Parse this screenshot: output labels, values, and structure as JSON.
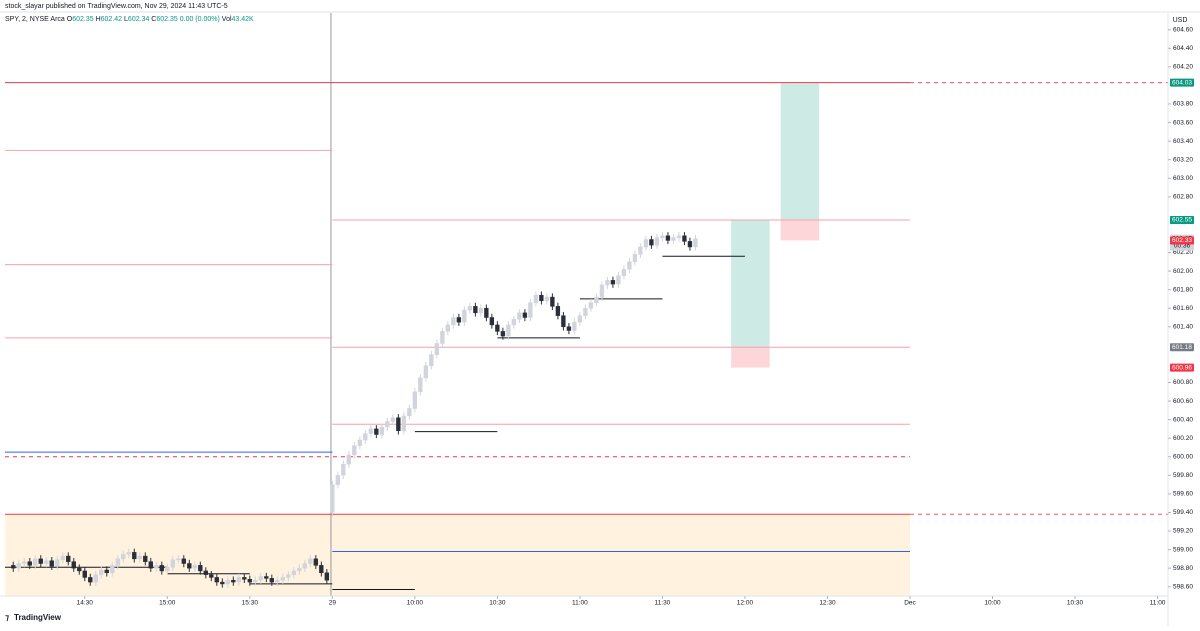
{
  "header": "stock_slayar published on TradingView.com, Nov 29, 2024 11:43 UTC-5",
  "legend": {
    "symbol": "SPY, 2, NYSE Arca",
    "items": [
      {
        "k": "O",
        "v": "602.35"
      },
      {
        "k": "H",
        "v": "602.42"
      },
      {
        "k": "L",
        "v": "602.34"
      },
      {
        "k": "C",
        "v": "602.35"
      }
    ],
    "change": "0.00 (0.00%)",
    "volume": {
      "k": "Vol",
      "v": "43.42K"
    }
  },
  "currency": "USD",
  "brand": "TradingView",
  "chart_data": {
    "type": "candlestick",
    "up_color": "#d1d4dc",
    "down_color": "#2a2e39",
    "x": [
      -13,
      -12,
      -11,
      -10,
      -9,
      -8,
      -7,
      -6,
      -5,
      -4,
      -3,
      -2,
      -1,
      0,
      1,
      2,
      3,
      4,
      5,
      6,
      7,
      8,
      9,
      10,
      11,
      12,
      13,
      14,
      15,
      16,
      17,
      18,
      19,
      20,
      21,
      22,
      23,
      24,
      25,
      26,
      27,
      28,
      29,
      30,
      31,
      32,
      33,
      34,
      35,
      36,
      37,
      38,
      39,
      40,
      41,
      42,
      43,
      44,
      45,
      46,
      47,
      48,
      49,
      50,
      51,
      52,
      53,
      54,
      55,
      56,
      57,
      58,
      59,
      60,
      61,
      62,
      63,
      64,
      65,
      66,
      67,
      68,
      69,
      70,
      71,
      72,
      73,
      74,
      75,
      76,
      77,
      78,
      79,
      80,
      81,
      82,
      83,
      84,
      85,
      86,
      87,
      88,
      89,
      90,
      91,
      92,
      93,
      94,
      95,
      96,
      97,
      98,
      99,
      100,
      101,
      102,
      103,
      104,
      105,
      106,
      107,
      108,
      109,
      110,
      111
    ],
    "ohlc": [
      [
        598.83,
        598.87,
        598.76,
        598.8
      ],
      [
        598.8,
        598.89,
        598.76,
        598.85
      ],
      [
        598.85,
        598.91,
        598.81,
        598.87
      ],
      [
        598.87,
        598.91,
        598.79,
        598.83
      ],
      [
        598.83,
        598.94,
        598.79,
        598.9
      ],
      [
        598.9,
        598.94,
        598.81,
        598.85
      ],
      [
        598.85,
        598.92,
        598.81,
        598.88
      ],
      [
        598.88,
        598.92,
        598.78,
        598.82
      ],
      [
        598.82,
        598.93,
        598.78,
        598.89
      ],
      [
        598.89,
        598.97,
        598.85,
        598.93
      ],
      [
        598.93,
        598.97,
        598.83,
        598.87
      ],
      [
        598.87,
        598.91,
        598.76,
        598.8
      ],
      [
        598.8,
        598.84,
        598.73,
        598.77
      ],
      [
        598.77,
        598.81,
        598.66,
        598.7
      ],
      [
        598.7,
        598.74,
        598.61,
        598.65
      ],
      [
        598.65,
        598.77,
        598.61,
        598.73
      ],
      [
        598.73,
        598.82,
        598.69,
        598.78
      ],
      [
        598.78,
        598.82,
        598.71,
        598.75
      ],
      [
        598.75,
        598.87,
        598.71,
        598.83
      ],
      [
        598.83,
        598.94,
        598.79,
        598.9
      ],
      [
        598.9,
        598.99,
        598.86,
        598.95
      ],
      [
        598.95,
        599.01,
        598.91,
        598.97
      ],
      [
        598.97,
        599.01,
        598.86,
        598.9
      ],
      [
        598.9,
        598.97,
        598.86,
        598.93
      ],
      [
        598.93,
        598.97,
        598.83,
        598.87
      ],
      [
        598.87,
        598.91,
        598.76,
        598.8
      ],
      [
        598.8,
        598.87,
        598.76,
        598.83
      ],
      [
        598.83,
        598.87,
        598.73,
        598.77
      ],
      [
        598.77,
        598.85,
        598.73,
        598.81
      ],
      [
        598.81,
        598.93,
        598.77,
        598.89
      ],
      [
        598.89,
        598.94,
        598.85,
        598.9
      ],
      [
        598.9,
        598.94,
        598.81,
        598.85
      ],
      [
        598.85,
        598.89,
        598.76,
        598.8
      ],
      [
        598.8,
        598.87,
        598.76,
        598.83
      ],
      [
        598.83,
        598.87,
        598.73,
        598.77
      ],
      [
        598.77,
        598.81,
        598.69,
        598.73
      ],
      [
        598.73,
        598.77,
        598.66,
        598.7
      ],
      [
        598.7,
        598.74,
        598.61,
        598.65
      ],
      [
        598.65,
        598.69,
        598.59,
        598.63
      ],
      [
        598.63,
        598.71,
        598.59,
        598.67
      ],
      [
        598.67,
        598.71,
        598.61,
        598.65
      ],
      [
        598.65,
        598.74,
        598.61,
        598.7
      ],
      [
        598.7,
        598.74,
        598.64,
        598.68
      ],
      [
        598.68,
        598.72,
        598.61,
        598.65
      ],
      [
        598.65,
        598.71,
        598.61,
        598.67
      ],
      [
        598.67,
        598.75,
        598.63,
        598.71
      ],
      [
        598.71,
        598.75,
        598.65,
        598.69
      ],
      [
        598.69,
        598.73,
        598.61,
        598.65
      ],
      [
        598.65,
        598.71,
        598.61,
        598.67
      ],
      [
        598.67,
        598.74,
        598.63,
        598.7
      ],
      [
        598.7,
        598.77,
        598.66,
        598.73
      ],
      [
        598.73,
        598.81,
        598.69,
        598.77
      ],
      [
        598.77,
        598.84,
        598.73,
        598.8
      ],
      [
        598.8,
        598.89,
        598.76,
        598.85
      ],
      [
        598.85,
        598.94,
        598.81,
        598.9
      ],
      [
        598.9,
        598.94,
        598.79,
        598.83
      ],
      [
        598.83,
        598.87,
        598.71,
        598.75
      ],
      [
        598.75,
        598.79,
        598.63,
        598.67
      ],
      [
        599.4,
        599.74,
        599.36,
        599.7
      ],
      [
        599.7,
        599.84,
        599.66,
        599.8
      ],
      [
        599.8,
        599.96,
        599.76,
        599.92
      ],
      [
        599.92,
        600.06,
        599.88,
        600.02
      ],
      [
        600.02,
        600.16,
        599.98,
        600.12
      ],
      [
        600.12,
        600.22,
        600.08,
        600.18
      ],
      [
        600.18,
        600.29,
        600.14,
        600.25
      ],
      [
        600.25,
        600.34,
        600.21,
        600.3
      ],
      [
        600.3,
        600.34,
        600.2,
        600.24
      ],
      [
        600.24,
        600.36,
        600.2,
        600.32
      ],
      [
        600.32,
        600.42,
        600.28,
        600.38
      ],
      [
        600.38,
        600.46,
        600.34,
        600.42
      ],
      [
        600.42,
        600.46,
        600.24,
        600.28
      ],
      [
        600.28,
        600.48,
        600.24,
        600.44
      ],
      [
        600.44,
        600.56,
        600.4,
        600.52
      ],
      [
        600.52,
        600.74,
        600.48,
        600.7
      ],
      [
        600.7,
        600.89,
        600.66,
        600.85
      ],
      [
        600.85,
        601.02,
        600.81,
        600.98
      ],
      [
        600.98,
        601.14,
        600.94,
        601.1
      ],
      [
        601.1,
        601.26,
        601.06,
        601.22
      ],
      [
        601.22,
        601.39,
        601.18,
        601.35
      ],
      [
        601.35,
        601.46,
        601.31,
        601.42
      ],
      [
        601.42,
        601.54,
        601.38,
        601.5
      ],
      [
        601.5,
        601.54,
        601.41,
        601.45
      ],
      [
        601.45,
        601.62,
        601.41,
        601.58
      ],
      [
        601.58,
        601.66,
        601.54,
        601.62
      ],
      [
        601.62,
        601.66,
        601.51,
        601.55
      ],
      [
        601.55,
        601.64,
        601.51,
        601.6
      ],
      [
        601.6,
        601.64,
        601.46,
        601.5
      ],
      [
        601.5,
        601.54,
        601.38,
        601.42
      ],
      [
        601.42,
        601.46,
        601.31,
        601.35
      ],
      [
        601.35,
        601.39,
        601.26,
        601.3
      ],
      [
        601.3,
        601.46,
        601.26,
        601.42
      ],
      [
        601.42,
        601.52,
        601.38,
        601.48
      ],
      [
        601.48,
        601.59,
        601.44,
        601.55
      ],
      [
        601.55,
        601.59,
        601.46,
        601.5
      ],
      [
        601.5,
        601.7,
        601.46,
        601.66
      ],
      [
        601.66,
        601.78,
        601.62,
        601.74
      ],
      [
        601.74,
        601.78,
        601.64,
        601.68
      ],
      [
        601.68,
        601.76,
        601.64,
        601.72
      ],
      [
        601.72,
        601.76,
        601.58,
        601.62
      ],
      [
        601.62,
        601.66,
        601.48,
        601.52
      ],
      [
        601.52,
        601.56,
        601.36,
        601.4
      ],
      [
        601.4,
        601.44,
        601.32,
        601.36
      ],
      [
        601.36,
        601.49,
        601.32,
        601.45
      ],
      [
        601.45,
        601.56,
        601.41,
        601.52
      ],
      [
        601.52,
        601.64,
        601.48,
        601.6
      ],
      [
        601.6,
        601.7,
        601.56,
        601.66
      ],
      [
        601.66,
        601.76,
        601.62,
        601.72
      ],
      [
        601.72,
        601.89,
        601.68,
        601.85
      ],
      [
        601.85,
        601.94,
        601.81,
        601.9
      ],
      [
        601.9,
        601.94,
        601.82,
        601.86
      ],
      [
        601.86,
        601.99,
        601.82,
        601.95
      ],
      [
        601.95,
        602.06,
        601.91,
        602.02
      ],
      [
        602.02,
        602.14,
        601.98,
        602.1
      ],
      [
        602.1,
        602.22,
        602.06,
        602.18
      ],
      [
        602.18,
        602.3,
        602.14,
        602.26
      ],
      [
        602.26,
        602.38,
        602.22,
        602.34
      ],
      [
        602.34,
        602.38,
        602.24,
        602.28
      ],
      [
        602.28,
        602.4,
        602.24,
        602.36
      ],
      [
        602.36,
        602.42,
        602.32,
        602.38
      ],
      [
        602.38,
        602.42,
        602.29,
        602.33
      ],
      [
        602.33,
        602.4,
        602.29,
        602.36
      ],
      [
        602.36,
        602.42,
        602.32,
        602.38
      ],
      [
        602.38,
        602.42,
        602.28,
        602.32
      ],
      [
        602.32,
        602.36,
        602.22,
        602.26
      ],
      [
        602.26,
        602.39,
        602.22,
        602.35
      ]
    ],
    "xlim": [
      -14.5,
      196.9
    ],
    "ylim": [
      598.5,
      604.78
    ],
    "xticks": [
      {
        "value": 0,
        "label": "14:30"
      },
      {
        "value": 15,
        "label": "15:00"
      },
      {
        "value": 30,
        "label": "15:30"
      },
      {
        "value": 45,
        "label": "29"
      },
      {
        "value": 60,
        "label": "10:00"
      },
      {
        "value": 75,
        "label": "10:30"
      },
      {
        "value": 90,
        "label": "11:00"
      },
      {
        "value": 105,
        "label": "11:30"
      },
      {
        "value": 120,
        "label": "12:00"
      },
      {
        "value": 135,
        "label": "12:30"
      },
      {
        "value": 150,
        "label": "Dec"
      },
      {
        "value": 165,
        "label": "10:00"
      },
      {
        "value": 180,
        "label": "10:30"
      },
      {
        "value": 195,
        "label": "11:00"
      }
    ],
    "yticks": [
      {
        "value": 598.6,
        "label": "598.60"
      },
      {
        "value": 598.8,
        "label": "598.80"
      },
      {
        "value": 599,
        "label": "599.00"
      },
      {
        "value": 599.2,
        "label": "599.20"
      },
      {
        "value": 599.4,
        "label": "599.40"
      },
      {
        "value": 599.6,
        "label": "599.60"
      },
      {
        "value": 599.8,
        "label": "599.80"
      },
      {
        "value": 600,
        "label": "600.00"
      },
      {
        "value": 600.2,
        "label": "600.20"
      },
      {
        "value": 600.4,
        "label": "600.40"
      },
      {
        "value": 600.6,
        "label": "600.60"
      },
      {
        "value": 600.8,
        "label": "600.80"
      },
      {
        "value": 601.4,
        "label": "601.40"
      },
      {
        "value": 601.6,
        "label": "601.60"
      },
      {
        "value": 601.8,
        "label": "601.80"
      },
      {
        "value": 602,
        "label": "602.00"
      },
      {
        "value": 602.2,
        "label": "602.20"
      },
      {
        "value": 602.8,
        "label": "602.80"
      },
      {
        "value": 603,
        "label": "603.00"
      },
      {
        "value": 603.2,
        "label": "603.20"
      },
      {
        "value": 603.4,
        "label": "603.40"
      },
      {
        "value": 603.6,
        "label": "603.60"
      },
      {
        "value": 603.8,
        "label": "603.80"
      },
      {
        "value": 604.2,
        "label": "604.20"
      },
      {
        "value": 604.4,
        "label": "604.40"
      },
      {
        "value": 604.6,
        "label": "604.60"
      }
    ],
    "session_break": 44.75,
    "zone": {
      "from": -14.5,
      "to": 150,
      "top": 599.38,
      "color": "#fff3e0"
    },
    "lines": [
      {
        "price": 604.03,
        "from": -14.5,
        "to": 150,
        "color": "#f23645",
        "dash": false
      },
      {
        "price": 604.03,
        "from": 150,
        "to": 196.9,
        "color": "#f7525f",
        "dash": true
      },
      {
        "price": 603.3,
        "from": -14.5,
        "to": 45,
        "color": "#f7a1a8",
        "dash": false
      },
      {
        "price": 602.07,
        "from": -14.5,
        "to": 45,
        "color": "#f7a1a8",
        "dash": false
      },
      {
        "price": 601.28,
        "from": -14.5,
        "to": 45,
        "color": "#f7a1a8",
        "dash": false
      },
      {
        "price": 602.55,
        "from": 45,
        "to": 150,
        "color": "#f7a1a8",
        "dash": false
      },
      {
        "price": 601.18,
        "from": 45,
        "to": 150,
        "color": "#f7a1a8",
        "dash": false
      },
      {
        "price": 600.35,
        "from": 45,
        "to": 150,
        "color": "#f7a1a8",
        "dash": false
      },
      {
        "price": 600,
        "from": -14.5,
        "to": 150,
        "color": "#f23645",
        "dash": true
      },
      {
        "price": 599.38,
        "from": -14.5,
        "to": 150,
        "color": "#f23645",
        "dash": false
      },
      {
        "price": 599.38,
        "from": 150,
        "to": 196.9,
        "color": "#f7525f",
        "dash": true
      },
      {
        "price": 600.05,
        "from": -14.5,
        "to": 45,
        "color": "#2962ff",
        "dash": false
      },
      {
        "price": 598.98,
        "from": 45,
        "to": 150,
        "color": "#2962ff",
        "dash": false
      },
      {
        "price": 598.81,
        "from": -14.5,
        "to": 15,
        "color": "#131722",
        "dash": false
      },
      {
        "price": 598.74,
        "from": 15,
        "to": 30,
        "color": "#131722",
        "dash": false
      },
      {
        "price": 598.63,
        "from": 30,
        "to": 45,
        "color": "#131722",
        "dash": false
      },
      {
        "price": 598.57,
        "from": 45,
        "to": 60,
        "color": "#131722",
        "dash": false
      },
      {
        "price": 600.27,
        "from": 60,
        "to": 75,
        "color": "#131722",
        "dash": false
      },
      {
        "price": 601.28,
        "from": 75,
        "to": 90,
        "color": "#131722",
        "dash": false
      },
      {
        "price": 601.7,
        "from": 90,
        "to": 105,
        "color": "#131722",
        "dash": false
      },
      {
        "price": 602.16,
        "from": 105,
        "to": 120,
        "color": "#131722",
        "dash": false
      }
    ],
    "positions": [
      {
        "from": 117.5,
        "to": 124.5,
        "entry": 601.18,
        "target": 602.55,
        "stop": 600.96
      },
      {
        "from": 126.5,
        "to": 133.5,
        "entry": 602.55,
        "target": 604.03,
        "stop": 602.33
      }
    ],
    "target_color": "#cdebe4",
    "stop_color": "#fcd6d9",
    "badges": [
      {
        "value": 604.03,
        "label": "604.03",
        "color": "#089981"
      },
      {
        "value": 602.55,
        "label": "602.55",
        "color": "#787b86"
      },
      {
        "value": 602.55,
        "label": "602.55",
        "color": "#089981"
      },
      {
        "value": 602.35,
        "label": "602.35",
        "color": "#d1d4dc",
        "sub": "00:36"
      },
      {
        "value": 602.33,
        "label": "602.33",
        "color": "#f23645"
      },
      {
        "value": 601.18,
        "label": "601.18",
        "color": "#787b86"
      },
      {
        "value": 600.96,
        "label": "600.96",
        "color": "#f23645"
      }
    ]
  }
}
